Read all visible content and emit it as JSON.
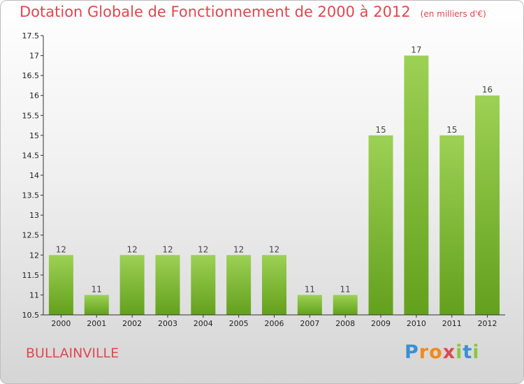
{
  "chart_title": "Dotation Globale de Fonctionnement de 2000 à 2012",
  "unit_label": "(en milliers d'€)",
  "commune_name": "BULLAINVILLE",
  "logo": {
    "letters": [
      "P",
      "r",
      "o",
      "x",
      "i",
      "t",
      "i"
    ],
    "colors": [
      "#3b8fd4",
      "#f08a1c",
      "#f08a1c",
      "#e0474f",
      "#8cc63f",
      "#3b8fd4",
      "#8cc63f"
    ]
  },
  "colors": {
    "accent": "#e0474f",
    "bar_top": "#9dd155",
    "bar_bottom": "#63a01c",
    "axis": "#333333"
  },
  "chart_data": {
    "type": "bar",
    "categories": [
      "2000",
      "2001",
      "2002",
      "2003",
      "2004",
      "2005",
      "2006",
      "2007",
      "2008",
      "2009",
      "2010",
      "2011",
      "2012"
    ],
    "values": [
      12,
      11,
      12,
      12,
      12,
      12,
      12,
      11,
      11,
      15,
      17,
      15,
      16
    ],
    "data_labels": [
      "12",
      "11",
      "12",
      "12",
      "12",
      "12",
      "12",
      "11",
      "11",
      "15",
      "17",
      "15",
      "16"
    ],
    "ylim": [
      10.5,
      17.5
    ],
    "yticks": [
      10.5,
      11,
      11.5,
      12,
      12.5,
      13,
      13.5,
      14,
      14.5,
      15,
      15.5,
      16,
      16.5,
      17,
      17.5
    ],
    "ytick_labels": [
      "10.5",
      "11",
      "11.5",
      "12",
      "12.5",
      "13",
      "13.5",
      "14",
      "14.5",
      "15",
      "15.5",
      "16",
      "16.5",
      "17",
      "17.5"
    ],
    "title": "Dotation Globale de Fonctionnement de 2000 à 2012",
    "xlabel": "",
    "ylabel": "",
    "grid": false
  }
}
